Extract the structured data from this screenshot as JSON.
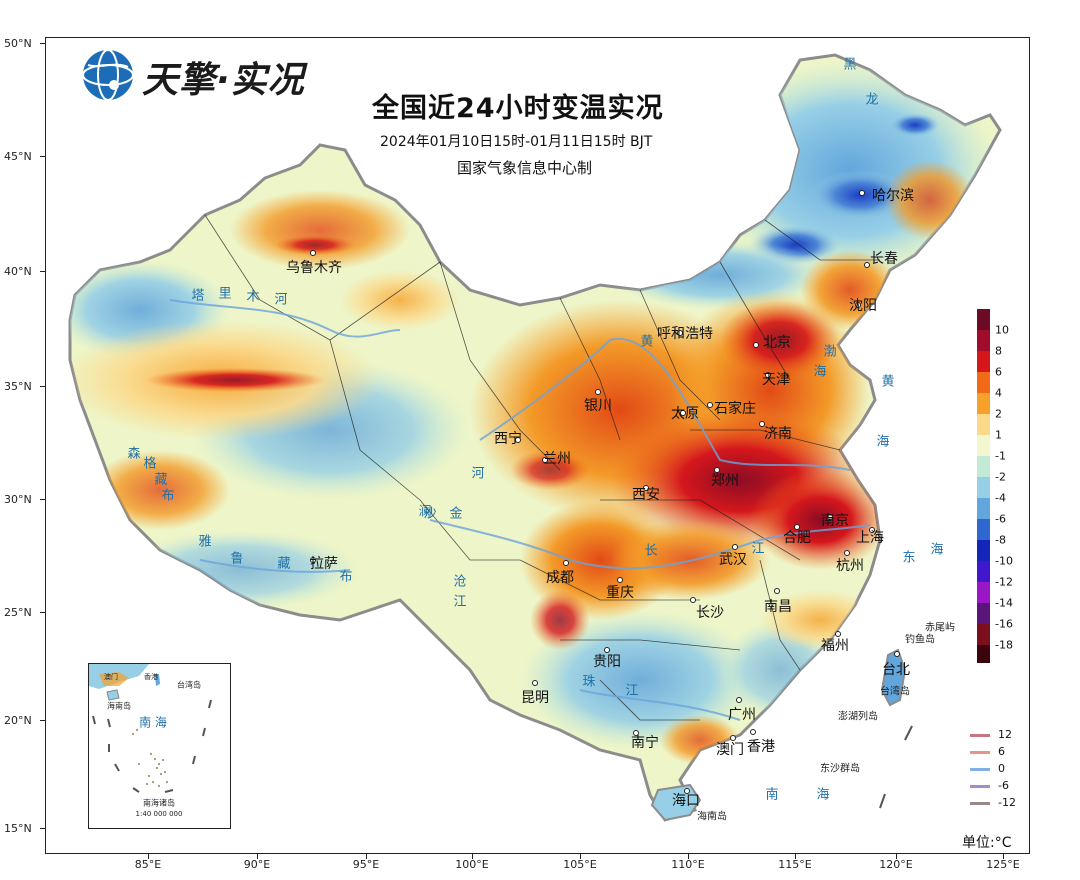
{
  "logo": {
    "text": "天擎·实况"
  },
  "header": {
    "title": "全国近24小时变温实况",
    "subtitle": "2024年01月10日15时-01月11日15时  BJT",
    "producer": "国家气象信息中心制"
  },
  "axes": {
    "lat_labels": [
      "50°N",
      "45°N",
      "40°N",
      "35°N",
      "30°N",
      "25°N",
      "20°N",
      "15°N"
    ],
    "lon_labels": [
      "85°E",
      "90°E",
      "95°E",
      "100°E",
      "105°E",
      "110°E",
      "115°E",
      "120°E",
      "125°E"
    ]
  },
  "cities": [
    {
      "id": "harbin",
      "name": "哈尔滨"
    },
    {
      "id": "changchun",
      "name": "长春"
    },
    {
      "id": "shenyang",
      "name": "沈阳"
    },
    {
      "id": "beijing",
      "name": "北京"
    },
    {
      "id": "tianjin",
      "name": "天津"
    },
    {
      "id": "hohhot",
      "name": "呼和浩特"
    },
    {
      "id": "shijiazhuang",
      "name": "石家庄"
    },
    {
      "id": "taiyuan",
      "name": "太原"
    },
    {
      "id": "jinan",
      "name": "济南"
    },
    {
      "id": "yinchuan",
      "name": "银川"
    },
    {
      "id": "xining",
      "name": "西宁"
    },
    {
      "id": "lanzhou",
      "name": "兰州"
    },
    {
      "id": "xian",
      "name": "西安"
    },
    {
      "id": "zhengzhou",
      "name": "郑州"
    },
    {
      "id": "nanjing",
      "name": "南京"
    },
    {
      "id": "shanghai",
      "name": "上海"
    },
    {
      "id": "hefei",
      "name": "合肥"
    },
    {
      "id": "hangzhou",
      "name": "杭州"
    },
    {
      "id": "wuhan",
      "name": "武汉"
    },
    {
      "id": "chengdu",
      "name": "成都"
    },
    {
      "id": "chongqing",
      "name": "重庆"
    },
    {
      "id": "changsha",
      "name": "长沙"
    },
    {
      "id": "nanchang",
      "name": "南昌"
    },
    {
      "id": "fuzhou",
      "name": "福州"
    },
    {
      "id": "taibei",
      "name": "台北"
    },
    {
      "id": "guiyang",
      "name": "贵阳"
    },
    {
      "id": "kunming",
      "name": "昆明"
    },
    {
      "id": "nanning",
      "name": "南宁"
    },
    {
      "id": "guangzhou",
      "name": "广州"
    },
    {
      "id": "aomen",
      "name": "澳门"
    },
    {
      "id": "xianggang",
      "name": "香港"
    },
    {
      "id": "haikou",
      "name": "海口"
    },
    {
      "id": "urumqi",
      "name": "乌鲁木齐"
    },
    {
      "id": "lasa",
      "name": "拉萨"
    }
  ],
  "water_labels": [
    {
      "id": "tarim-1",
      "text": "塔"
    },
    {
      "id": "tarim-2",
      "text": "里"
    },
    {
      "id": "tarim-3",
      "text": "木"
    },
    {
      "id": "tarim-4",
      "text": "河"
    },
    {
      "id": "bohai-1",
      "text": "渤"
    },
    {
      "id": "bohai-2",
      "text": "海"
    },
    {
      "id": "huanghai-1",
      "text": "黄"
    },
    {
      "id": "huanghai-2",
      "text": "海"
    },
    {
      "id": "donghai-1",
      "text": "东"
    },
    {
      "id": "donghai-2",
      "text": "海"
    },
    {
      "id": "nanhai-1",
      "text": "南"
    },
    {
      "id": "nanhai-2",
      "text": "海"
    },
    {
      "id": "zhujiang-1",
      "text": "珠"
    },
    {
      "id": "zhujiang-2",
      "text": "江"
    },
    {
      "id": "yellow-river-1",
      "text": "黄"
    },
    {
      "id": "yellow-river-2",
      "text": "河"
    },
    {
      "id": "yangtze-1",
      "text": "长"
    },
    {
      "id": "yangtze-2",
      "text": "江"
    },
    {
      "id": "jinsha-1",
      "text": "金"
    },
    {
      "id": "jinsha-2",
      "text": "沙"
    },
    {
      "id": "lancang-1",
      "text": "澜"
    },
    {
      "id": "lancang-2",
      "text": "沧"
    },
    {
      "id": "lancang-3",
      "text": "江"
    },
    {
      "id": "yarlung-1",
      "text": "雅"
    },
    {
      "id": "yarlung-2",
      "text": "鲁"
    },
    {
      "id": "yarlung-3",
      "text": "藏"
    },
    {
      "id": "yarlung-4",
      "text": "布"
    },
    {
      "id": "gelamu-1",
      "text": "森"
    },
    {
      "id": "gelamu-2",
      "text": "格"
    },
    {
      "id": "gelamu-3",
      "text": "藏"
    },
    {
      "id": "gelamu-4",
      "text": "布"
    },
    {
      "id": "heilong-1",
      "text": "黑"
    },
    {
      "id": "heilong-2",
      "text": "龙"
    }
  ],
  "islands": {
    "chiweiyu": "赤尾屿",
    "diaoyudao": "钓鱼岛",
    "taiwan": "台湾岛",
    "penghu": "澎湖列岛",
    "dongsha": "东沙群岛",
    "hainan": "海南岛"
  },
  "inset": {
    "taiwan": "台湾岛",
    "hainan": "海南岛",
    "nanhai": "南  海",
    "xianggang": "香港",
    "aomen": "澳门",
    "nanhai_islands": "南海诸岛",
    "scale": "1:40 000 000"
  },
  "legend": {
    "title": "",
    "bins": [
      {
        "label": "10",
        "color": "#6d0a24"
      },
      {
        "label": "8",
        "color": "#a10c2c"
      },
      {
        "label": "6",
        "color": "#d5171c"
      },
      {
        "label": "4",
        "color": "#f06a17"
      },
      {
        "label": "2",
        "color": "#f7a12b"
      },
      {
        "label": "1",
        "color": "#fbd98a"
      },
      {
        "label": "-1",
        "color": "#f4f6cf"
      },
      {
        "label": "-2",
        "color": "#c3ead6"
      },
      {
        "label": "-4",
        "color": "#97cfe6"
      },
      {
        "label": "-6",
        "color": "#62a6dc"
      },
      {
        "label": "-8",
        "color": "#2f66d0"
      },
      {
        "label": "-10",
        "color": "#1326b9"
      },
      {
        "label": "-12",
        "color": "#4017cc"
      },
      {
        "label": "-14",
        "color": "#9a17c8"
      },
      {
        "label": "-16",
        "color": "#5a147a"
      },
      {
        "label": "-18",
        "color": "#7c0f1d"
      }
    ],
    "end_color": "#3a050c"
  },
  "isolines": [
    {
      "label": "12",
      "color": "#c7767f"
    },
    {
      "label": "6",
      "color": "#e6938d"
    },
    {
      "label": "0",
      "color": "#7fb0e8"
    },
    {
      "label": "-6",
      "color": "#a889c9"
    },
    {
      "label": "-12",
      "color": "#9a8888"
    }
  ],
  "unit": "单位:°C"
}
